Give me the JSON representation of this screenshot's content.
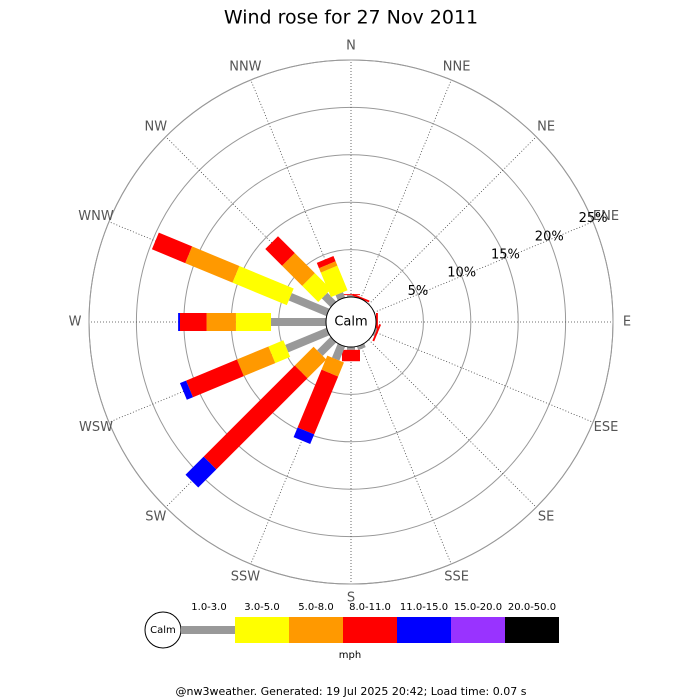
{
  "chart_data": {
    "type": "windrose",
    "title": "Wind rose for 27 Nov 2011",
    "directions": [
      "N",
      "NNE",
      "NE",
      "ENE",
      "E",
      "ESE",
      "SE",
      "SSE",
      "S",
      "SSW",
      "SW",
      "WSW",
      "W",
      "WNW",
      "NW",
      "NNW"
    ],
    "center_label": "Calm",
    "rlim": [
      0,
      25
    ],
    "rticks": [
      {
        "value": 5,
        "label": "5%"
      },
      {
        "value": 10,
        "label": "10%"
      },
      {
        "value": 15,
        "label": "15%"
      },
      {
        "value": 20,
        "label": "20%"
      },
      {
        "value": 25,
        "label": "25%"
      }
    ],
    "series": [
      {
        "name": "1.0-3.0",
        "color": "#999999",
        "values": [
          0.2,
          0,
          0,
          0,
          0,
          0.2,
          0,
          0.4,
          0.3,
          1.6,
          2.0,
          4.7,
          5.8,
          4.3,
          1.3,
          0.6
        ]
      },
      {
        "name": "3.0-5.0",
        "color": "#ffff00",
        "values": [
          0,
          0,
          0,
          0,
          0,
          0,
          0,
          0,
          0,
          0,
          0,
          1.7,
          3.7,
          6.2,
          2.4,
          2.8
        ]
      },
      {
        "name": "5.0-8.0",
        "color": "#ff9900",
        "values": [
          0,
          0,
          0,
          0,
          0,
          0,
          0,
          0,
          0,
          1.6,
          2.8,
          3.6,
          3.1,
          5.4,
          3.0,
          0.5
        ]
      },
      {
        "name": "8.0-11.0",
        "color": "#ff0000",
        "values": [
          0.1,
          0.2,
          0,
          0,
          0.2,
          0.2,
          0,
          0,
          1.2,
          6.6,
          13.6,
          5.8,
          2.8,
          3.8,
          2.5,
          0.6
        ]
      },
      {
        "name": "11.0-15.0",
        "color": "#0000ff",
        "values": [
          0,
          0,
          0,
          0,
          0,
          0,
          0,
          0,
          0,
          1.1,
          2.7,
          0.7,
          0.2,
          0,
          0,
          0
        ]
      },
      {
        "name": "15.0-20.0",
        "color": "#9933ff",
        "values": [
          0,
          0,
          0,
          0,
          0,
          0,
          0,
          0,
          0,
          0,
          0,
          0,
          0,
          0,
          0,
          0
        ]
      },
      {
        "name": "20.0-50.0",
        "color": "#000000",
        "values": [
          0,
          0,
          0,
          0,
          0,
          0,
          0,
          0,
          0,
          0,
          0,
          0,
          0,
          0,
          0,
          0
        ]
      }
    ],
    "unit": "mph",
    "footer": "@nw3weather. Generated: 19 Jul 2025 20:42; Load time: 0.07 s"
  }
}
